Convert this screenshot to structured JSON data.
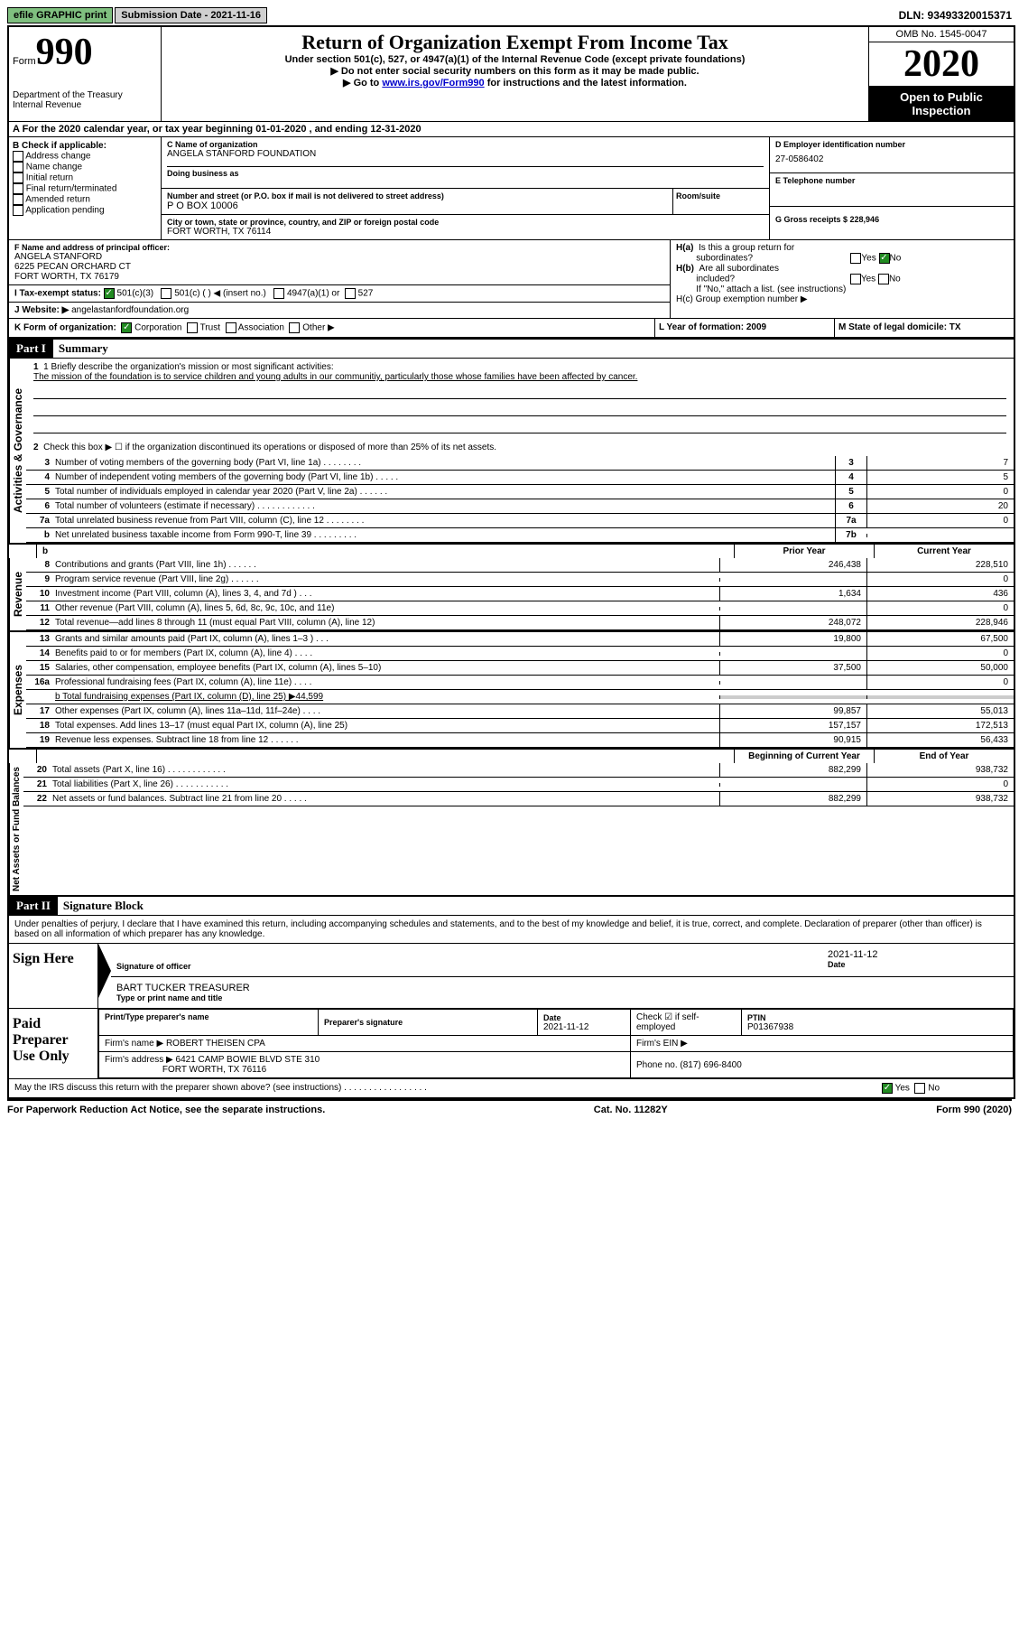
{
  "topbar": {
    "efile": "efile GRAPHIC print",
    "submission": "Submission Date - 2021-11-16",
    "dln": "DLN: 93493320015371"
  },
  "header": {
    "form": "Form",
    "num": "990",
    "dept1": "Department of the Treasury",
    "dept2": "Internal Revenue",
    "title": "Return of Organization Exempt From Income Tax",
    "subtitle": "Under section 501(c), 527, or 4947(a)(1) of the Internal Revenue Code (except private foundations)",
    "note1": "▶ Do not enter social security numbers on this form as it may be made public.",
    "note2_pre": "▶ Go to ",
    "note2_link": "www.irs.gov/Form990",
    "note2_post": " for instructions and the latest information.",
    "omb": "OMB No. 1545-0047",
    "year": "2020",
    "open": "Open to Public Inspection"
  },
  "row_a": "A For the 2020 calendar year, or tax year beginning 01-01-2020    , and ending 12-31-2020",
  "section_b": {
    "hdr": "B Check if applicable:",
    "opts": [
      "Address change",
      "Name change",
      "Initial return",
      "Final return/terminated",
      "Amended return",
      "Application pending"
    ]
  },
  "section_c": {
    "name_lbl": "C Name of organization",
    "name": "ANGELA STANFORD FOUNDATION",
    "dba_lbl": "Doing business as",
    "addr_lbl": "Number and street (or P.O. box if mail is not delivered to street address)",
    "room_lbl": "Room/suite",
    "addr": "P O BOX 10006",
    "city_lbl": "City or town, state or province, country, and ZIP or foreign postal code",
    "city": "FORT WORTH, TX  76114"
  },
  "section_d": {
    "ein_lbl": "D Employer identification number",
    "ein": "27-0586402",
    "tel_lbl": "E Telephone number",
    "gross_lbl": "G Gross receipts $ 228,946"
  },
  "section_f": {
    "lbl": "F  Name and address of principal officer:",
    "name": "ANGELA STANFORD",
    "addr1": "6225 PECAN ORCHARD CT",
    "addr2": "FORT WORTH, TX  76179"
  },
  "section_h": {
    "ha": "H(a)  Is this a group return for subordinates?",
    "hb": "H(b)  Are all subordinates included?",
    "hb_note": "If \"No,\" attach a list. (see instructions)",
    "hc": "H(c)  Group exemption number ▶"
  },
  "row_i": {
    "lbl": "I    Tax-exempt status:",
    "opts": [
      "501(c)(3)",
      "501(c) (  ) ◀ (insert no.)",
      "4947(a)(1) or",
      "527"
    ]
  },
  "row_j": {
    "lbl": "J   Website: ▶",
    "val": "angelastanfordfoundation.org"
  },
  "row_k": {
    "lbl": "K Form of organization:",
    "opts": [
      "Corporation",
      "Trust",
      "Association",
      "Other ▶"
    ]
  },
  "row_l": "L Year of formation: 2009",
  "row_m": "M State of legal domicile: TX",
  "part1": {
    "num": "Part I",
    "title": "Summary",
    "vert1": "Activities & Governance",
    "vert2": "Revenue",
    "vert3": "Expenses",
    "vert4": "Net Assets or Fund Balances",
    "l1_lbl": "1   Briefly describe the organization's mission or most significant activities:",
    "l1_txt": "The mission of the foundation is to service children and young adults in our communitiy, particularly those whose families have been affected by cancer.",
    "l2": "Check this box ▶ ☐  if the organization discontinued its operations or disposed of more than 25% of its net assets.",
    "lines_gov": [
      {
        "n": "3",
        "t": "Number of voting members of the governing body (Part VI, line 1a)   .    .    .    .    .    .    .    .",
        "b": "3",
        "v": "7"
      },
      {
        "n": "4",
        "t": "Number of independent voting members of the governing body (Part VI, line 1b)   .    .    .    .    .",
        "b": "4",
        "v": "5"
      },
      {
        "n": "5",
        "t": "Total number of individuals employed in calendar year 2020 (Part V, line 2a)   .    .    .    .    .    .",
        "b": "5",
        "v": "0"
      },
      {
        "n": "6",
        "t": "Total number of volunteers (estimate if necessary)   .    .    .    .    .    .    .    .    .    .    .    .",
        "b": "6",
        "v": "20"
      },
      {
        "n": "7a",
        "t": "Total unrelated business revenue from Part VIII, column (C), line 12   .    .    .    .    .    .    .    .",
        "b": "7a",
        "v": "0"
      },
      {
        "n": "b",
        "t": "Net unrelated business taxable income from Form 990-T, line 39   .    .    .    .    .    .    .    .    .",
        "b": "7b",
        "v": ""
      }
    ],
    "hdr_prior": "Prior Year",
    "hdr_curr": "Current Year",
    "lines_rev": [
      {
        "n": "8",
        "t": "Contributions and grants (Part VIII, line 1h)   .    .    .    .    .    .",
        "p": "246,438",
        "c": "228,510"
      },
      {
        "n": "9",
        "t": "Program service revenue (Part VIII, line 2g)   .    .    .    .    .    .",
        "p": "",
        "c": "0"
      },
      {
        "n": "10",
        "t": "Investment income (Part VIII, column (A), lines 3, 4, and 7d )   .    .    .",
        "p": "1,634",
        "c": "436"
      },
      {
        "n": "11",
        "t": "Other revenue (Part VIII, column (A), lines 5, 6d, 8c, 9c, 10c, and 11e)",
        "p": "",
        "c": "0"
      },
      {
        "n": "12",
        "t": "Total revenue—add lines 8 through 11 (must equal Part VIII, column (A), line 12)",
        "p": "248,072",
        "c": "228,946"
      }
    ],
    "lines_exp": [
      {
        "n": "13",
        "t": "Grants and similar amounts paid (Part IX, column (A), lines 1–3 )   .    .    .",
        "p": "19,800",
        "c": "67,500"
      },
      {
        "n": "14",
        "t": "Benefits paid to or for members (Part IX, column (A), line 4)   .    .    .    .",
        "p": "",
        "c": "0"
      },
      {
        "n": "15",
        "t": "Salaries, other compensation, employee benefits (Part IX, column (A), lines 5–10)",
        "p": "37,500",
        "c": "50,000"
      },
      {
        "n": "16a",
        "t": "Professional fundraising fees (Part IX, column (A), line 11e)   .    .    .    .",
        "p": "",
        "c": "0"
      }
    ],
    "l16b": "b   Total fundraising expenses (Part IX, column (D), line 25) ▶44,599",
    "lines_exp2": [
      {
        "n": "17",
        "t": "Other expenses (Part IX, column (A), lines 11a–11d, 11f–24e)   .    .    .    .",
        "p": "99,857",
        "c": "55,013"
      },
      {
        "n": "18",
        "t": "Total expenses. Add lines 13–17 (must equal Part IX, column (A), line 25)",
        "p": "157,157",
        "c": "172,513"
      },
      {
        "n": "19",
        "t": "Revenue less expenses. Subtract line 18 from line 12   .    .    .    .    .    .",
        "p": "90,915",
        "c": "56,433"
      }
    ],
    "hdr_beg": "Beginning of Current Year",
    "hdr_end": "End of Year",
    "lines_net": [
      {
        "n": "20",
        "t": "Total assets (Part X, line 16)   .    .    .    .    .    .    .    .    .    .    .    .",
        "p": "882,299",
        "c": "938,732"
      },
      {
        "n": "21",
        "t": "Total liabilities (Part X, line 26)   .    .    .    .    .    .    .    .    .    .    .",
        "p": "",
        "c": "0"
      },
      {
        "n": "22",
        "t": "Net assets or fund balances. Subtract line 21 from line 20   .    .    .    .    .",
        "p": "882,299",
        "c": "938,732"
      }
    ]
  },
  "part2": {
    "num": "Part II",
    "title": "Signature Block",
    "decl": "Under penalties of perjury, I declare that I have examined this return, including accompanying schedules and statements, and to the best of my knowledge and belief, it is true, correct, and complete. Declaration of preparer (other than officer) is based on all information of which preparer has any knowledge.",
    "sign_here": "Sign Here",
    "sig_lbl": "Signature of officer",
    "date1": "2021-11-12",
    "date_lbl": "Date",
    "name_title": "BART TUCKER  TREASURER",
    "name_lbl": "Type or print name and title",
    "paid": "Paid Preparer Use Only",
    "prep_name_lbl": "Print/Type preparer's name",
    "prep_sig_lbl": "Preparer's signature",
    "prep_date_lbl": "Date",
    "prep_date": "2021-11-12",
    "check_lbl": "Check ☑ if self-employed",
    "ptin_lbl": "PTIN",
    "ptin": "P01367938",
    "firm_lbl": "Firm's name    ▶",
    "firm": "ROBERT THEISEN CPA",
    "firm_ein_lbl": "Firm's EIN ▶",
    "firm_addr_lbl": "Firm's address ▶",
    "firm_addr1": "6421 CAMP BOWIE BLVD STE 310",
    "firm_addr2": "FORT WORTH, TX  76116",
    "phone_lbl": "Phone no.",
    "phone": "(817) 696-8400",
    "discuss": "May the IRS discuss this return with the preparer shown above? (see instructions)   .    .    .    .    .    .    .    .    .    .    .    .    .    .    .    .    ."
  },
  "footer": {
    "left": "For Paperwork Reduction Act Notice, see the separate instructions.",
    "mid": "Cat. No. 11282Y",
    "right": "Form 990 (2020)"
  }
}
